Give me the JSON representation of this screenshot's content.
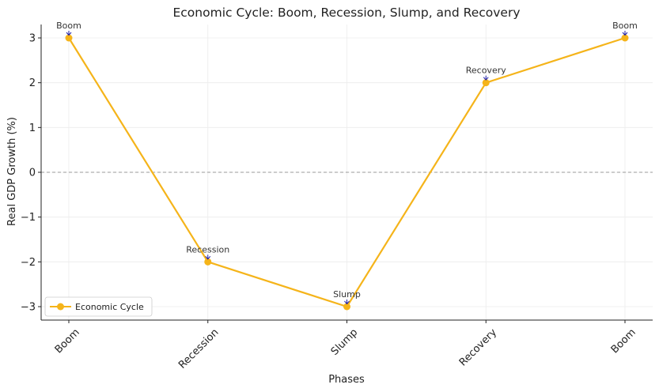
{
  "chart_data": {
    "type": "line",
    "title": "Economic Cycle: Boom, Recession, Slump, and Recovery",
    "xlabel": "Phases",
    "ylabel": "Real GDP Growth (%)",
    "categories": [
      "Boom",
      "Recession",
      "Slump",
      "Recovery",
      "Boom"
    ],
    "series": [
      {
        "name": "Economic Cycle",
        "values": [
          3,
          -2,
          -3,
          2,
          3
        ],
        "color": "#f5b41a",
        "marker": "circle"
      }
    ],
    "annotations": [
      {
        "text": "Boom",
        "x_index": 0,
        "y": 3
      },
      {
        "text": "Recession",
        "x_index": 1,
        "y": -2
      },
      {
        "text": "Slump",
        "x_index": 2,
        "y": -3
      },
      {
        "text": "Recovery",
        "x_index": 3,
        "y": 2
      },
      {
        "text": "Boom",
        "x_index": 4,
        "y": 3
      }
    ],
    "yticks": [
      "−3",
      "−2",
      "−1",
      "0",
      "1",
      "2",
      "3"
    ],
    "ytick_values": [
      -3,
      -2,
      -1,
      0,
      1,
      2,
      3
    ],
    "ylim": [
      -3.3,
      3.3
    ],
    "reference_line": {
      "y": 0,
      "style": "dashed",
      "color": "#999999"
    },
    "arrow_color": "#1a1aa6",
    "grid": true,
    "legend_position": "lower-left"
  }
}
